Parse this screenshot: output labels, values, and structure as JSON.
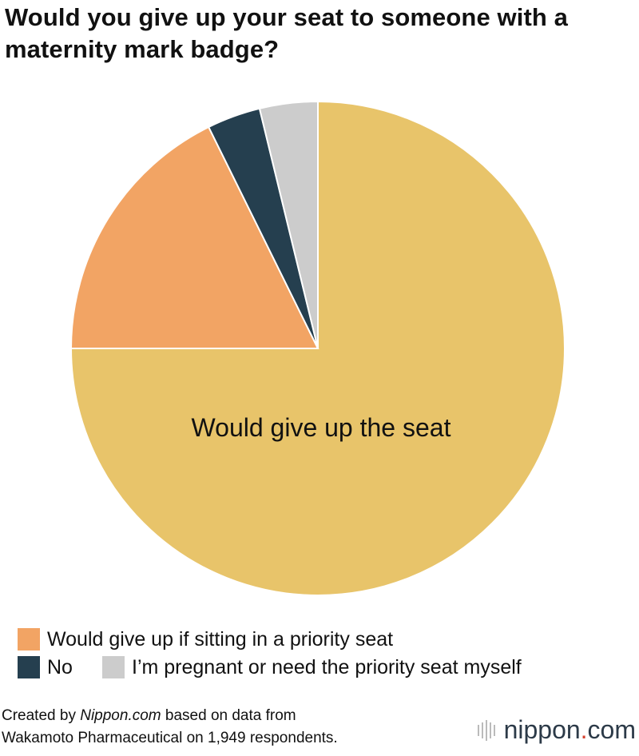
{
  "title": "Would you give up your seat to someone with a maternity mark badge?",
  "chart_data": {
    "type": "pie",
    "title": "Would you give up your seat to someone with a maternity mark badge?",
    "slices": [
      {
        "label": "Would give up the seat",
        "value": 75.0,
        "color": "#e8c46a"
      },
      {
        "label": "Would give up if sitting in a priority seat",
        "value": 17.7,
        "color": "#f2a464"
      },
      {
        "label": "No",
        "value": 3.5,
        "color": "#253f4f"
      },
      {
        "label": "I’m pregnant or need the priority seat myself",
        "value": 3.8,
        "color": "#cccccc"
      }
    ],
    "inner_label": "Would give up the seat",
    "start": "12 o'clock",
    "direction": "clockwise"
  },
  "legend": [
    {
      "label": "Would give up if sitting in a priority seat",
      "color": "#f2a464"
    },
    {
      "label": "No",
      "color": "#253f4f"
    },
    {
      "label": "I’m pregnant or need the priority seat myself",
      "color": "#cccccc"
    }
  ],
  "footer": {
    "prefix": "Created by ",
    "site": "Nippon.com",
    "suffix": " based on data from",
    "line2": "Wakamoto Pharmaceutical on 1,949 respondents."
  },
  "brand": {
    "name": "nippon",
    "dot": ".",
    "tld": "com"
  }
}
